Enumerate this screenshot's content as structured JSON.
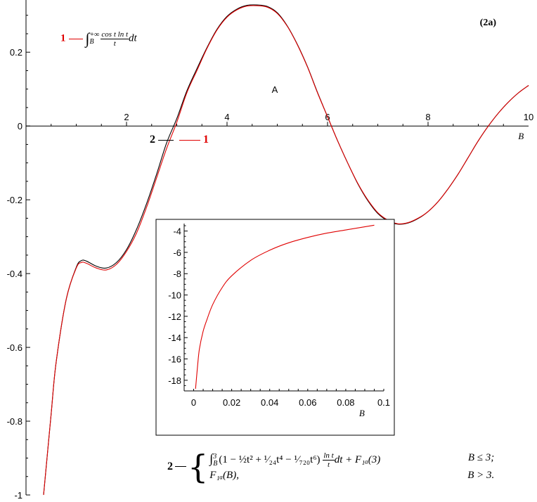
{
  "chart_data": [
    {
      "type": "line",
      "panel_label": "(2a)",
      "point_label": "A",
      "xlabel": "B",
      "ylabel": "",
      "xlim": [
        0,
        10
      ],
      "ylim": [
        -1,
        0.33
      ],
      "x_ticks": [
        2,
        4,
        6,
        8,
        10
      ],
      "x_tick_labels": [
        "2",
        "4",
        "6",
        "8",
        "10"
      ],
      "y_ticks": [
        0.2,
        0,
        -0.2,
        -0.4,
        -0.6,
        -0.8,
        -1
      ],
      "y_tick_labels": [
        "0.2",
        "0",
        "-0.2",
        "-0.4",
        "-0.6",
        "-0.8",
        "-1"
      ],
      "series": [
        {
          "name": "1",
          "color": "#e00000",
          "x": [
            0.35,
            0.5,
            0.6,
            0.8,
            1.0,
            1.1,
            1.2,
            1.4,
            1.6,
            1.8,
            2.0,
            2.2,
            2.4,
            2.6,
            2.8,
            3.0,
            3.2,
            3.4,
            3.6,
            3.8,
            4.0,
            4.2,
            4.4,
            4.6,
            4.8,
            5.0,
            5.2,
            5.4,
            5.6,
            5.8,
            6.0,
            6.2,
            6.4,
            6.6,
            6.8,
            7.0,
            7.2,
            7.4,
            7.6,
            7.8,
            8.0,
            8.2,
            8.4,
            8.6,
            8.8,
            9.0,
            9.2,
            9.4,
            9.6,
            9.8,
            10.0
          ],
          "y": [
            -1.0,
            -0.78,
            -0.64,
            -0.47,
            -0.385,
            -0.37,
            -0.372,
            -0.385,
            -0.39,
            -0.375,
            -0.34,
            -0.29,
            -0.22,
            -0.14,
            -0.06,
            0.01,
            0.09,
            0.15,
            0.21,
            0.26,
            0.295,
            0.315,
            0.325,
            0.326,
            0.322,
            0.305,
            0.27,
            0.22,
            0.16,
            0.09,
            0.025,
            -0.04,
            -0.1,
            -0.155,
            -0.2,
            -0.235,
            -0.255,
            -0.265,
            -0.262,
            -0.25,
            -0.232,
            -0.205,
            -0.17,
            -0.13,
            -0.085,
            -0.04,
            0.0,
            0.035,
            0.065,
            0.09,
            0.11
          ]
        },
        {
          "name": "2",
          "color": "#000000",
          "x": [
            0.35,
            0.5,
            0.6,
            0.8,
            1.0,
            1.1,
            1.2,
            1.4,
            1.6,
            1.8,
            2.0,
            2.2,
            2.4,
            2.6,
            2.8,
            3.0,
            3.2,
            3.4,
            3.6,
            3.8,
            4.0,
            4.2,
            4.4,
            4.6,
            4.8,
            5.0,
            5.2,
            5.4,
            5.6,
            5.8,
            6.0,
            6.2,
            6.4,
            6.6,
            6.8,
            7.0,
            7.2,
            7.4,
            7.6,
            7.8,
            8.0,
            8.2,
            8.4,
            8.6,
            8.8,
            9.0,
            9.2,
            9.4,
            9.6,
            9.8,
            10.0
          ],
          "y": [
            -1.0,
            -0.78,
            -0.64,
            -0.47,
            -0.383,
            -0.365,
            -0.366,
            -0.38,
            -0.385,
            -0.37,
            -0.335,
            -0.28,
            -0.21,
            -0.13,
            -0.045,
            0.02,
            0.095,
            0.155,
            0.212,
            0.262,
            0.297,
            0.317,
            0.327,
            0.328,
            0.324,
            0.307,
            0.271,
            0.221,
            0.161,
            0.091,
            0.025,
            -0.04,
            -0.1,
            -0.156,
            -0.202,
            -0.237,
            -0.257,
            -0.266,
            -0.263,
            -0.251,
            -0.232,
            -0.205,
            -0.17,
            -0.13,
            -0.085,
            -0.04,
            0.0,
            0.035,
            0.065,
            0.09,
            0.11
          ]
        }
      ]
    },
    {
      "type": "line",
      "xlabel": "B",
      "ylabel": "",
      "xlim": [
        -0.005,
        0.1
      ],
      "ylim": [
        -19,
        -3.3
      ],
      "x_ticks": [
        0,
        0.02,
        0.04,
        0.06,
        0.08,
        0.1
      ],
      "x_tick_labels": [
        "0",
        "0.02",
        "0.04",
        "0.06",
        "0.08",
        "0.1"
      ],
      "y_ticks": [
        -4,
        -6,
        -8,
        -10,
        -12,
        -14,
        -16,
        -18
      ],
      "y_tick_labels": [
        "-4",
        "-6",
        "-8",
        "-10",
        "-12",
        "-14",
        "-16",
        "-18"
      ],
      "series": [
        {
          "name": "1",
          "color": "#e00000",
          "x": [
            0.001,
            0.002,
            0.003,
            0.005,
            0.007,
            0.01,
            0.015,
            0.02,
            0.03,
            0.04,
            0.05,
            0.06,
            0.07,
            0.08,
            0.095
          ],
          "y": [
            -18.8,
            -16.8,
            -15.1,
            -13.4,
            -12.3,
            -10.9,
            -9.3,
            -8.2,
            -6.75,
            -5.8,
            -5.1,
            -4.6,
            -4.2,
            -3.9,
            -3.45
          ]
        }
      ]
    }
  ],
  "legend": {
    "item1_number": "1",
    "item2_number": "2",
    "item1_integral": "∫",
    "item1_upper": "+∞",
    "item1_lower": "B",
    "item1_frac_num": "cos t ln t",
    "item1_frac_den": "t",
    "item1_tail": "dt",
    "mid_label_2": "2",
    "mid_label_1": "1"
  },
  "formula": {
    "number": "2",
    "brace": "{",
    "row1_lower": "B",
    "row1_upper": "3",
    "row1_body": "(1 − ½t² + ¹⁄₂₄t⁴ − ¹⁄₇₂₀t⁶)",
    "row1_frac_num": "ln t",
    "row1_frac_den": "t",
    "row1_tail": "dt + F₁ₐ(3)",
    "row1_cond": "B ≤ 3;",
    "row2_body": "F₁ₐ(B),",
    "row2_cond": "B > 3."
  }
}
